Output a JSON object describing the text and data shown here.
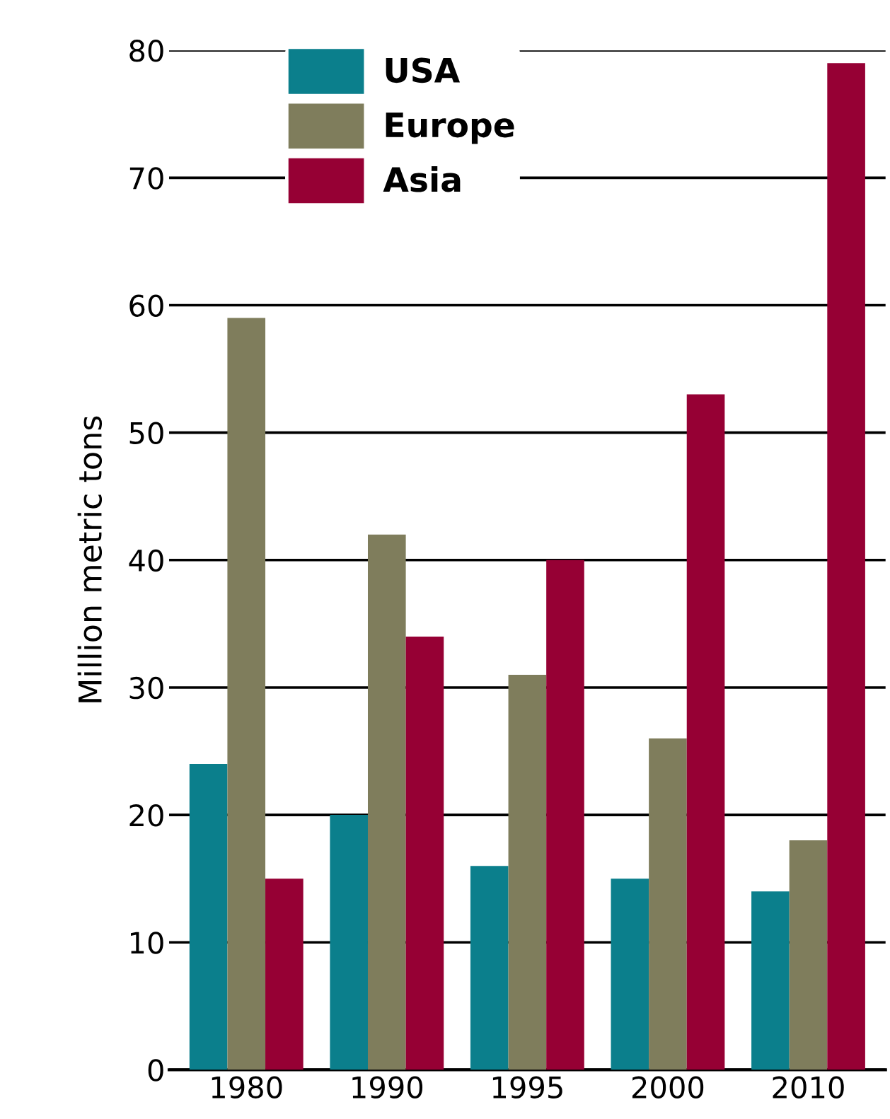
{
  "chart_data": {
    "type": "bar",
    "ylabel": "Million metric tons",
    "categories": [
      "1980",
      "1990",
      "1995",
      "2000",
      "2010"
    ],
    "series": [
      {
        "name": "USA",
        "color": "#0b7f8c",
        "values": [
          24,
          20,
          16,
          15,
          14
        ]
      },
      {
        "name": "Europe",
        "color": "#7f7d5c",
        "values": [
          59,
          42,
          31,
          26,
          18
        ]
      },
      {
        "name": "Asia",
        "color": "#960034",
        "values": [
          15,
          34,
          40,
          53,
          79
        ]
      }
    ],
    "ylim": [
      0,
      80
    ],
    "yticks": [
      0,
      10,
      20,
      30,
      40,
      50,
      60,
      70,
      80
    ],
    "grid": "y",
    "legend": "top left"
  }
}
